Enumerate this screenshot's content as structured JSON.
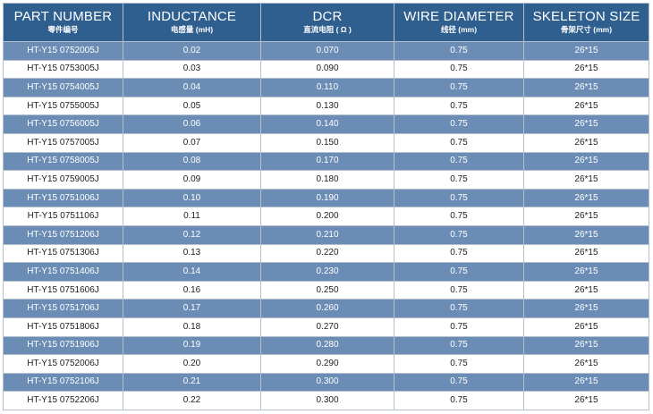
{
  "headers": [
    {
      "title": "PART NUMBER",
      "sub": "零件编号"
    },
    {
      "title": "INDUCTANCE",
      "sub": "电感量 (mH)"
    },
    {
      "title": "DCR",
      "sub": "直流电阻 ( Ω )"
    },
    {
      "title": "WIRE DIAMETER",
      "sub": "线径 (mm)"
    },
    {
      "title": "SKELETON SIZE",
      "sub": "骨架尺寸 (mm)"
    }
  ],
  "rows": [
    [
      "HT-Y15 0752005J",
      "0.02",
      "0.070",
      "0.75",
      "26*15"
    ],
    [
      "HT-Y15 0753005J",
      "0.03",
      "0.090",
      "0.75",
      "26*15"
    ],
    [
      "HT-Y15 0754005J",
      "0.04",
      "0.110",
      "0.75",
      "26*15"
    ],
    [
      "HT-Y15 0755005J",
      "0.05",
      "0.130",
      "0.75",
      "26*15"
    ],
    [
      "HT-Y15 0756005J",
      "0.06",
      "0.140",
      "0.75",
      "26*15"
    ],
    [
      "HT-Y15 0757005J",
      "0.07",
      "0.150",
      "0.75",
      "26*15"
    ],
    [
      "HT-Y15 0758005J",
      "0.08",
      "0.170",
      "0.75",
      "26*15"
    ],
    [
      "HT-Y15 0759005J",
      "0.09",
      "0.180",
      "0.75",
      "26*15"
    ],
    [
      "HT-Y15 0751006J",
      "0.10",
      "0.190",
      "0.75",
      "26*15"
    ],
    [
      "HT-Y15 0751106J",
      "0.11",
      "0.200",
      "0.75",
      "26*15"
    ],
    [
      "HT-Y15 0751206J",
      "0.12",
      "0.210",
      "0.75",
      "26*15"
    ],
    [
      "HT-Y15 0751306J",
      "0.13",
      "0.220",
      "0.75",
      "26*15"
    ],
    [
      "HT-Y15 0751406J",
      "0.14",
      "0.230",
      "0.75",
      "26*15"
    ],
    [
      "HT-Y15 0751606J",
      "0.16",
      "0.250",
      "0.75",
      "26*15"
    ],
    [
      "HT-Y15 0751706J",
      "0.17",
      "0.260",
      "0.75",
      "26*15"
    ],
    [
      "HT-Y15 0751806J",
      "0.18",
      "0.270",
      "0.75",
      "26*15"
    ],
    [
      "HT-Y15 0751906J",
      "0.19",
      "0.280",
      "0.75",
      "26*15"
    ],
    [
      "HT-Y15 0752006J",
      "0.20",
      "0.290",
      "0.75",
      "26*15"
    ],
    [
      "HT-Y15 0752106J",
      "0.21",
      "0.300",
      "0.75",
      "26*15"
    ],
    [
      "HT-Y15 0752206J",
      "0.22",
      "0.300",
      "0.75",
      "26*15"
    ]
  ],
  "colors": {
    "header_bg": "#2f5f8f",
    "alt_row_bg": "#6b8db5",
    "plain_row_bg": "#ffffff",
    "border": "#b4c0cc"
  }
}
